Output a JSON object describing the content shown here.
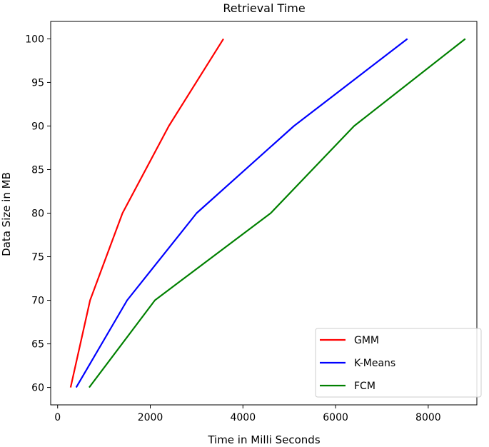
{
  "chart_data": {
    "type": "line",
    "title": "Retrieval Time",
    "xlabel": "Time in Milli Seconds",
    "ylabel": "Data Size in MB",
    "xlim": [
      -150,
      9050
    ],
    "ylim": [
      58,
      102
    ],
    "xticks": [
      0,
      2000,
      4000,
      6000,
      8000
    ],
    "yticks": [
      60,
      65,
      70,
      75,
      80,
      85,
      90,
      95,
      100
    ],
    "xtick_labels": [
      "0",
      "2000",
      "4000",
      "6000",
      "8000"
    ],
    "ytick_labels": [
      "60",
      "65",
      "70",
      "75",
      "80",
      "85",
      "90",
      "95",
      "100"
    ],
    "grid": false,
    "legend_position": "lower-right",
    "series": [
      {
        "name": "GMM",
        "color": "#ff0000",
        "x": [
          280,
          700,
          1400,
          2400,
          3580
        ],
        "y": [
          60,
          70,
          80,
          90,
          100
        ]
      },
      {
        "name": "K-Means",
        "color": "#0000ff",
        "x": [
          400,
          1500,
          3000,
          5100,
          7550
        ],
        "y": [
          60,
          70,
          80,
          90,
          100
        ]
      },
      {
        "name": "FCM",
        "color": "#008000",
        "x": [
          680,
          2100,
          4600,
          6400,
          8800
        ],
        "y": [
          60,
          70,
          80,
          90,
          100
        ]
      }
    ]
  }
}
